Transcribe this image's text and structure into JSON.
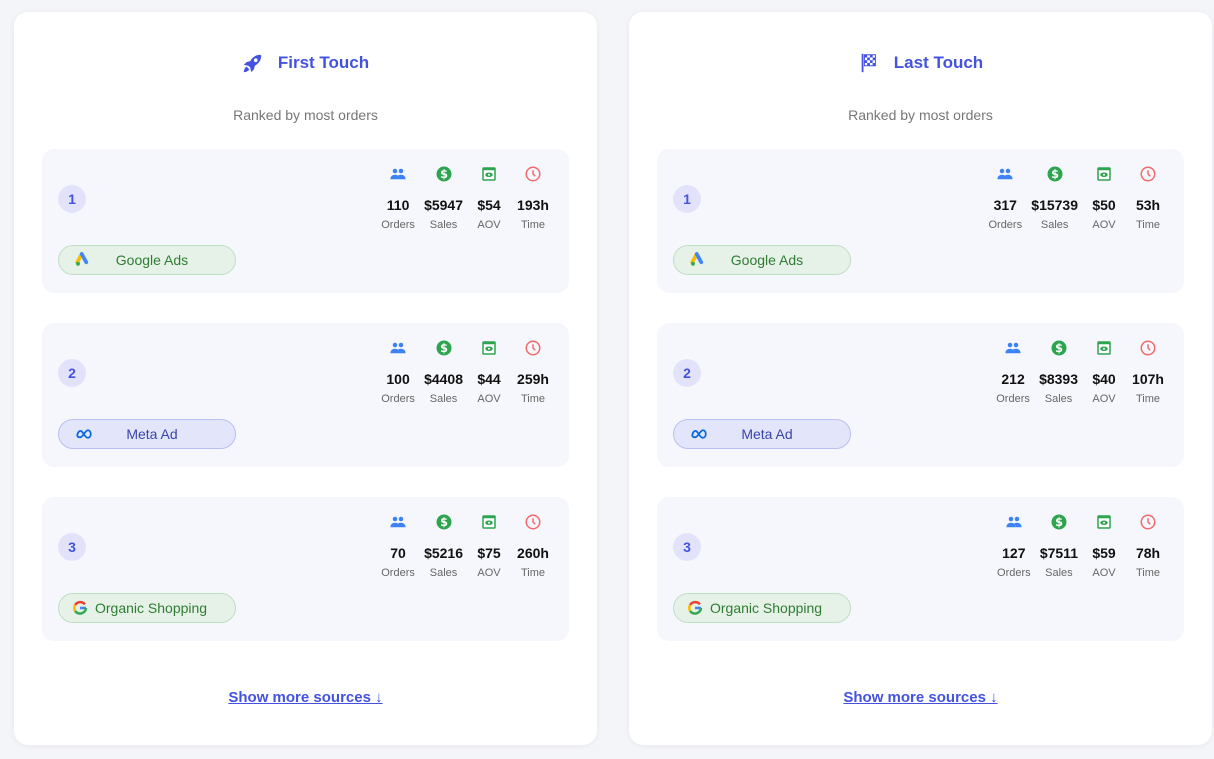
{
  "colors": {
    "accent": "#4353e0",
    "orders": "#3b82f6",
    "sales": "#2ea44f",
    "aov": "#2ea44f",
    "time": "#f06b6b"
  },
  "panels": [
    {
      "title": "First Touch",
      "icon": "rocket-icon",
      "subtitle": "Ranked by most orders",
      "show_more": "Show more sources ↓",
      "sources": [
        {
          "rank": "1",
          "name": "Google Ads",
          "icon": "google-ads-icon",
          "style": "green",
          "orders": "110",
          "sales": "$5947",
          "aov": "$54",
          "time": "193h"
        },
        {
          "rank": "2",
          "name": "Meta Ad",
          "icon": "meta-icon",
          "style": "blue",
          "orders": "100",
          "sales": "$4408",
          "aov": "$44",
          "time": "259h"
        },
        {
          "rank": "3",
          "name": "Organic Shopping",
          "icon": "google-icon",
          "style": "green",
          "orders": "70",
          "sales": "$5216",
          "aov": "$75",
          "time": "260h"
        }
      ]
    },
    {
      "title": "Last Touch",
      "icon": "checkered-flag-icon",
      "subtitle": "Ranked by most orders",
      "show_more": "Show more sources ↓",
      "sources": [
        {
          "rank": "1",
          "name": "Google Ads",
          "icon": "google-ads-icon",
          "style": "green",
          "orders": "317",
          "sales": "$15739",
          "aov": "$50",
          "time": "53h"
        },
        {
          "rank": "2",
          "name": "Meta Ad",
          "icon": "meta-icon",
          "style": "blue",
          "orders": "212",
          "sales": "$8393",
          "aov": "$40",
          "time": "107h"
        },
        {
          "rank": "3",
          "name": "Organic Shopping",
          "icon": "google-icon",
          "style": "green",
          "orders": "127",
          "sales": "$7511",
          "aov": "$59",
          "time": "78h"
        }
      ]
    }
  ],
  "labels": {
    "orders": "Orders",
    "sales": "Sales",
    "aov": "AOV",
    "time": "Time"
  }
}
